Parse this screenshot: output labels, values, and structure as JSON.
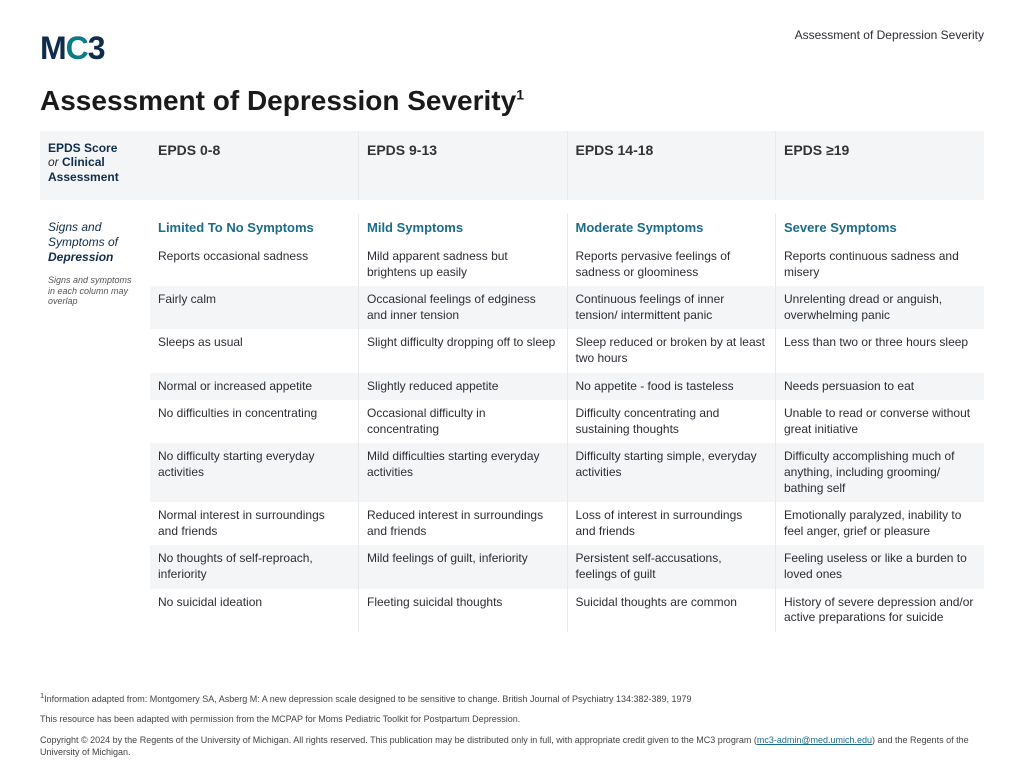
{
  "header": {
    "top_right": "Assessment of Depression Severity",
    "logo_text_m": "M",
    "logo_text_c": "C",
    "logo_text_3": "3",
    "title": "Assessment of Depression Severity",
    "title_sup": "1"
  },
  "table": {
    "score_side_line1": "EPDS Score",
    "score_side_or": "or ",
    "score_side_line2": "Clinical Assessment",
    "score_cols": [
      "EPDS 0-8",
      "EPDS 9-13",
      "EPDS 14-18",
      "EPDS ≥19"
    ],
    "sym_side_line1": "Signs and Symptoms of",
    "sym_side_emph": "Depression",
    "sym_side_note": "Signs and symptoms in each column may overlap",
    "sym_headers": [
      "Limited To No Symptoms",
      "Mild Symptoms",
      "Moderate Symptoms",
      "Severe Symptoms"
    ],
    "rows": [
      [
        "Reports occasional sadness",
        "Mild apparent sadness but brightens up easily",
        "Reports pervasive feelings of sadness or gloominess",
        "Reports continuous sadness and misery"
      ],
      [
        "Fairly calm",
        "Occasional feelings of edginess and inner tension",
        "Continuous feelings of inner tension/ intermittent panic",
        "Unrelenting dread or anguish, overwhelming panic"
      ],
      [
        "Sleeps as usual",
        "Slight difficulty dropping off to sleep",
        "Sleep reduced or broken by at least two hours",
        "Less than two or three hours sleep"
      ],
      [
        "Normal or increased appetite",
        "Slightly reduced appetite",
        "No appetite - food is tasteless",
        "Needs persuasion to eat"
      ],
      [
        "No difficulties in concentrating",
        "Occasional difficulty in concentrating",
        "Difficulty concentrating and sustaining thoughts",
        "Unable to read or converse without great initiative"
      ],
      [
        "No difficulty starting everyday activities",
        "Mild difficulties starting everyday activities",
        "Difficulty starting simple, everyday activities",
        "Difficulty accomplishing much of anything, including grooming/ bathing self"
      ],
      [
        "Normal interest in surroundings and friends",
        "Reduced interest in surroundings and friends",
        "Loss of interest in surroundings and friends",
        "Emotionally paralyzed, inability to feel anger, grief or pleasure"
      ],
      [
        "No thoughts of self-reproach, inferiority",
        "Mild feelings of guilt, inferiority",
        "Persistent self-accusations, feelings of guilt",
        "Feeling useless or like a burden to loved ones"
      ],
      [
        "No suicidal ideation",
        "Fleeting suicidal thoughts",
        "Suicidal thoughts are common",
        "History of severe depression and/or active preparations for suicide"
      ]
    ]
  },
  "footer": {
    "note1_sup": "1",
    "note1": "Information adapted from: Montgomery SA, Asberg M: A new depression scale designed to be sensitive to change. British Journal of Psychiatry 134:382-389, 1979",
    "note2": "This resource has been adapted with permission from the MCPAP for Moms Pediatric Toolkit for Postpartum Depression.",
    "copyright_a": "Copyright © 2024 by the Regents of the University of Michigan. All rights reserved. This publication may be distributed only in full, with appropriate credit given to the MC3 program (",
    "copyright_link": "mc3-admin@med.umich.edu",
    "copyright_b": ") and the Regents of the University of Michigan."
  },
  "style": {
    "brand_color": "#0d7a8a",
    "header_color": "#1b6b8c",
    "row_alt_bg": "#f4f5f6"
  }
}
